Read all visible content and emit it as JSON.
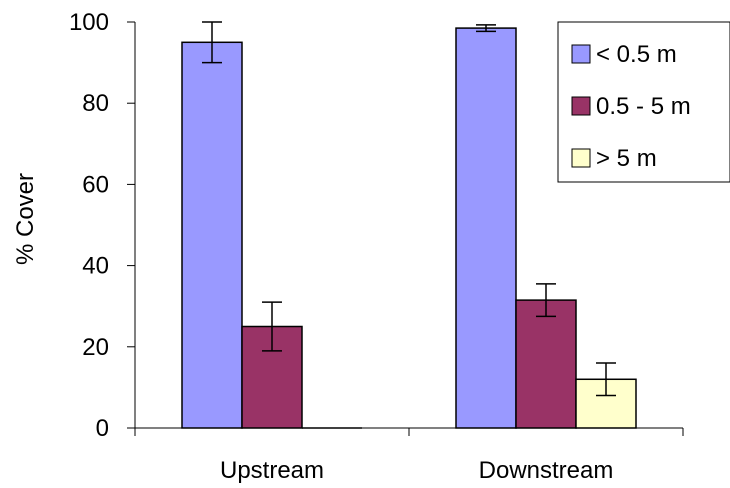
{
  "chart_data": {
    "type": "bar",
    "title": "",
    "xlabel": "",
    "ylabel": "% Cover",
    "categories": [
      "Upstream",
      "Downstream"
    ],
    "ylim": [
      0,
      100
    ],
    "yticks": [
      0,
      20,
      40,
      60,
      80,
      100
    ],
    "grid": false,
    "legend_position": "top-right",
    "series": [
      {
        "name": "< 0.5 m",
        "color": "#9999ff",
        "values": [
          95,
          98.5
        ],
        "errors": [
          5,
          0.8
        ]
      },
      {
        "name": "0.5 - 5 m",
        "color": "#993366",
        "values": [
          25,
          31.5
        ],
        "errors": [
          6,
          4
        ]
      },
      {
        "name": "> 5 m",
        "color": "#ffffcc",
        "values": [
          0,
          12
        ],
        "errors": [
          0,
          4
        ]
      }
    ]
  }
}
